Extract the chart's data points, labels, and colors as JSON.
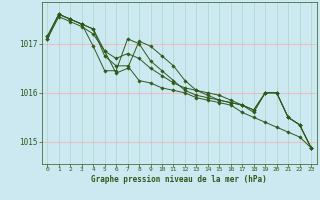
{
  "xlabel": "Graphe pression niveau de la mer (hPa)",
  "background_color": "#cce8f0",
  "plot_background": "#cce8f0",
  "grid_color_v": "#aad4cc",
  "grid_color_h": "#ffaaaa",
  "line_color": "#2d5a1b",
  "marker_color": "#2d5a1b",
  "ylim": [
    1014.55,
    1017.85
  ],
  "yticks": [
    1015,
    1016,
    1017
  ],
  "xlim": [
    -0.5,
    23.5
  ],
  "xticks": [
    0,
    1,
    2,
    3,
    4,
    5,
    6,
    7,
    8,
    9,
    10,
    11,
    12,
    13,
    14,
    15,
    16,
    17,
    18,
    19,
    20,
    21,
    22,
    23
  ],
  "series": [
    [
      1017.1,
      1017.6,
      1017.5,
      1017.4,
      1017.3,
      1016.85,
      1016.7,
      1016.8,
      1016.7,
      1016.5,
      1016.35,
      1016.2,
      1016.1,
      1016.05,
      1016.0,
      1015.95,
      1015.85,
      1015.75,
      1015.6,
      1016.0,
      1016.0,
      1015.5,
      1015.35,
      1014.88
    ],
    [
      1017.1,
      1017.55,
      1017.45,
      1017.35,
      1017.2,
      1016.85,
      1016.4,
      1016.5,
      1017.05,
      1016.95,
      1016.75,
      1016.55,
      1016.25,
      1016.05,
      1015.95,
      1015.85,
      1015.8,
      1015.75,
      1015.65,
      1016.0,
      1016.0,
      1015.5,
      1015.35,
      1014.88
    ],
    [
      1017.15,
      1017.6,
      1017.5,
      1017.4,
      1016.95,
      1016.45,
      1016.45,
      1017.1,
      1017.0,
      1016.65,
      1016.45,
      1016.25,
      1016.05,
      1015.95,
      1015.9,
      1015.85,
      1015.8,
      1015.75,
      1015.65,
      1016.0,
      1016.0,
      1015.5,
      1015.35,
      1014.88
    ],
    [
      1017.15,
      1017.6,
      1017.5,
      1017.4,
      1017.3,
      1016.75,
      1016.55,
      1016.55,
      1016.25,
      1016.2,
      1016.1,
      1016.05,
      1016.0,
      1015.9,
      1015.85,
      1015.8,
      1015.75,
      1015.6,
      1015.5,
      1015.4,
      1015.3,
      1015.2,
      1015.1,
      1014.88
    ]
  ]
}
